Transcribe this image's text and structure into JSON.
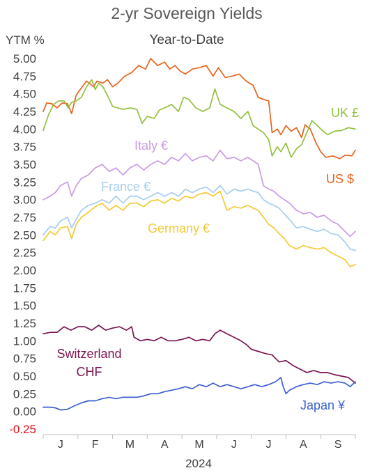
{
  "chart_data": {
    "type": "line",
    "title": "2-yr Sovereign Yields",
    "subtitle": "Year-to-Date",
    "ylabel": "YTM %",
    "xlabel": "2024",
    "ylim": [
      -0.25,
      5.0
    ],
    "yticks": [
      5.0,
      4.75,
      4.5,
      4.25,
      4.0,
      3.75,
      3.5,
      3.25,
      3.0,
      2.75,
      2.5,
      2.25,
      2.0,
      1.75,
      1.5,
      1.25,
      1.0,
      0.75,
      0.5,
      0.25,
      0.0,
      -0.25
    ],
    "ytick_labels": [
      "5.00",
      "4.75",
      "4.50",
      "4.25",
      "4.00",
      "3.75",
      "3.50",
      "3.25",
      "3.00",
      "2.75",
      "2.50",
      "2.25",
      "2.00",
      "1.75",
      "1.50",
      "1.25",
      "1.00",
      "0.75",
      "0.50",
      "0.25",
      "0.00",
      "-0.25"
    ],
    "months": [
      "J",
      "F",
      "M",
      "A",
      "M",
      "J",
      "J",
      "A",
      "S"
    ],
    "grid": false,
    "series": [
      {
        "name": "US $",
        "color": "#e8621c",
        "label_lines": [
          "US $"
        ],
        "x": [
          0,
          0.1,
          0.25,
          0.4,
          0.55,
          0.7,
          0.82,
          0.95,
          1.05,
          1.25,
          1.45,
          1.55,
          1.72,
          1.85,
          2.0,
          2.15,
          2.35,
          2.55,
          2.75,
          2.95,
          3.1,
          3.3,
          3.5,
          3.65,
          3.8,
          3.95,
          4.1,
          4.3,
          4.5,
          4.7,
          4.9,
          5.05,
          5.25,
          5.45,
          5.65,
          5.85,
          6.05,
          6.2,
          6.35,
          6.5,
          6.6,
          6.75,
          6.85,
          7.0,
          7.15,
          7.3,
          7.45,
          7.55,
          7.7,
          7.85,
          8.0,
          8.15,
          8.35,
          8.55,
          8.7,
          8.9,
          9.0
        ],
        "values": [
          4.25,
          4.37,
          4.36,
          4.3,
          4.37,
          4.36,
          4.22,
          4.48,
          4.55,
          4.68,
          4.6,
          4.68,
          4.65,
          4.7,
          4.6,
          4.65,
          4.75,
          4.8,
          4.9,
          4.85,
          5.0,
          4.9,
          4.95,
          4.85,
          4.9,
          4.82,
          4.78,
          4.85,
          4.87,
          4.9,
          4.75,
          4.87,
          4.73,
          4.75,
          4.78,
          4.68,
          4.62,
          4.45,
          4.42,
          4.4,
          3.95,
          4.0,
          3.92,
          4.05,
          3.97,
          4.02,
          3.88,
          4.06,
          4.0,
          3.82,
          3.68,
          3.6,
          3.62,
          3.58,
          3.63,
          3.62,
          3.7
        ]
      },
      {
        "name": "UK £",
        "color": "#92c13e",
        "label_lines": [
          "UK £"
        ],
        "x": [
          0,
          0.15,
          0.3,
          0.45,
          0.6,
          0.72,
          0.82,
          0.95,
          1.1,
          1.25,
          1.4,
          1.5,
          1.6,
          1.72,
          1.85,
          2.0,
          2.15,
          2.3,
          2.5,
          2.7,
          2.85,
          3.0,
          3.2,
          3.35,
          3.5,
          3.7,
          3.9,
          4.05,
          4.2,
          4.4,
          4.6,
          4.8,
          4.95,
          5.1,
          5.3,
          5.5,
          5.7,
          5.9,
          6.05,
          6.2,
          6.35,
          6.5,
          6.6,
          6.75,
          6.85,
          7.0,
          7.15,
          7.3,
          7.45,
          7.6,
          7.75,
          7.9,
          8.05,
          8.2,
          8.4,
          8.6,
          8.8,
          9.0
        ],
        "values": [
          3.98,
          4.2,
          4.35,
          4.4,
          4.4,
          4.3,
          4.38,
          4.4,
          4.45,
          4.6,
          4.7,
          4.56,
          4.65,
          4.6,
          4.48,
          4.32,
          4.3,
          4.28,
          4.3,
          4.28,
          4.08,
          4.18,
          4.15,
          4.27,
          4.3,
          4.35,
          4.25,
          4.45,
          4.42,
          4.3,
          4.25,
          4.3,
          4.57,
          4.35,
          4.3,
          4.25,
          4.15,
          4.25,
          4.05,
          4.0,
          3.95,
          3.85,
          3.62,
          3.75,
          3.68,
          3.8,
          3.6,
          3.72,
          3.78,
          3.95,
          4.12,
          4.05,
          3.98,
          3.92,
          3.97,
          3.98,
          4.02,
          4.0
        ]
      },
      {
        "name": "Italy €",
        "color": "#c99ae6",
        "label_lines": [
          "Italy €"
        ],
        "x": [
          0,
          0.2,
          0.35,
          0.5,
          0.7,
          0.82,
          0.95,
          1.1,
          1.3,
          1.5,
          1.7,
          1.9,
          2.1,
          2.3,
          2.5,
          2.7,
          2.9,
          3.1,
          3.3,
          3.5,
          3.7,
          3.9,
          4.1,
          4.3,
          4.5,
          4.7,
          4.9,
          5.1,
          5.3,
          5.5,
          5.7,
          5.9,
          6.05,
          6.2,
          6.35,
          6.5,
          6.65,
          6.8,
          6.95,
          7.1,
          7.3,
          7.5,
          7.7,
          7.9,
          8.1,
          8.3,
          8.5,
          8.7,
          8.85,
          9.0
        ],
        "values": [
          3.0,
          3.05,
          3.1,
          3.2,
          3.25,
          3.05,
          3.2,
          3.3,
          3.35,
          3.45,
          3.5,
          3.4,
          3.45,
          3.35,
          3.45,
          3.5,
          3.42,
          3.5,
          3.55,
          3.5,
          3.6,
          3.55,
          3.65,
          3.55,
          3.6,
          3.62,
          3.55,
          3.7,
          3.58,
          3.6,
          3.55,
          3.6,
          3.55,
          3.5,
          3.2,
          3.15,
          3.12,
          3.05,
          3.0,
          2.95,
          2.85,
          2.8,
          2.82,
          2.75,
          2.78,
          2.7,
          2.65,
          2.55,
          2.48,
          2.55
        ]
      },
      {
        "name": "France €",
        "color": "#a6cdee",
        "label_lines": [
          "France €"
        ],
        "x": [
          0,
          0.2,
          0.35,
          0.5,
          0.7,
          0.82,
          0.95,
          1.1,
          1.3,
          1.5,
          1.7,
          1.9,
          2.1,
          2.3,
          2.5,
          2.7,
          2.9,
          3.1,
          3.3,
          3.5,
          3.7,
          3.9,
          4.1,
          4.3,
          4.5,
          4.7,
          4.9,
          5.1,
          5.3,
          5.5,
          5.7,
          5.9,
          6.05,
          6.2,
          6.35,
          6.5,
          6.65,
          6.8,
          6.95,
          7.1,
          7.3,
          7.5,
          7.7,
          7.9,
          8.1,
          8.3,
          8.5,
          8.7,
          8.85,
          9.0
        ],
        "values": [
          2.5,
          2.62,
          2.6,
          2.7,
          2.75,
          2.6,
          2.72,
          2.85,
          2.92,
          2.95,
          3.0,
          2.95,
          3.05,
          2.95,
          3.05,
          3.05,
          3.0,
          3.05,
          3.1,
          3.05,
          3.1,
          3.05,
          3.15,
          3.1,
          3.15,
          3.18,
          3.1,
          3.2,
          3.08,
          3.15,
          3.12,
          3.15,
          3.12,
          3.1,
          3.0,
          2.95,
          2.92,
          2.88,
          2.8,
          2.72,
          2.6,
          2.62,
          2.58,
          2.55,
          2.58,
          2.52,
          2.5,
          2.4,
          2.3,
          2.28
        ]
      },
      {
        "name": "Germany €",
        "color": "#f5c933",
        "label_lines": [
          "Germany €"
        ],
        "x": [
          0,
          0.2,
          0.35,
          0.5,
          0.7,
          0.82,
          0.95,
          1.1,
          1.3,
          1.5,
          1.7,
          1.9,
          2.1,
          2.3,
          2.5,
          2.7,
          2.9,
          3.1,
          3.3,
          3.5,
          3.7,
          3.9,
          4.1,
          4.3,
          4.5,
          4.7,
          4.9,
          5.1,
          5.3,
          5.5,
          5.7,
          5.9,
          6.05,
          6.2,
          6.35,
          6.5,
          6.65,
          6.8,
          6.95,
          7.1,
          7.3,
          7.5,
          7.7,
          7.9,
          8.1,
          8.3,
          8.5,
          8.7,
          8.85,
          9.0
        ],
        "values": [
          2.42,
          2.55,
          2.5,
          2.6,
          2.62,
          2.45,
          2.65,
          2.75,
          2.82,
          2.9,
          2.95,
          2.85,
          2.92,
          2.85,
          2.95,
          2.95,
          2.9,
          2.98,
          3.0,
          2.95,
          3.02,
          2.98,
          3.05,
          3.02,
          3.08,
          3.1,
          3.05,
          3.12,
          2.85,
          2.9,
          2.88,
          2.92,
          2.88,
          2.85,
          2.75,
          2.65,
          2.6,
          2.52,
          2.45,
          2.35,
          2.3,
          2.35,
          2.32,
          2.3,
          2.32,
          2.25,
          2.2,
          2.15,
          2.05,
          2.08
        ]
      },
      {
        "name": "Switzerland CHF",
        "color": "#7b1450",
        "label_lines": [
          "Switzerland",
          "CHF"
        ],
        "x": [
          0,
          0.2,
          0.4,
          0.6,
          0.8,
          1.0,
          1.2,
          1.4,
          1.6,
          1.8,
          2.0,
          2.2,
          2.4,
          2.55,
          2.62,
          2.8,
          3.0,
          3.2,
          3.4,
          3.6,
          3.8,
          4.0,
          4.2,
          4.4,
          4.6,
          4.8,
          4.95,
          5.1,
          5.3,
          5.5,
          5.7,
          5.85,
          6.0,
          6.2,
          6.4,
          6.6,
          6.8,
          7.0,
          7.2,
          7.4,
          7.6,
          7.8,
          8.0,
          8.2,
          8.4,
          8.6,
          8.8,
          9.0
        ],
        "values": [
          1.1,
          1.12,
          1.12,
          1.2,
          1.15,
          1.2,
          1.2,
          1.15,
          1.22,
          1.15,
          1.18,
          1.2,
          1.15,
          1.2,
          1.05,
          1.0,
          1.02,
          1.0,
          1.05,
          1.0,
          1.0,
          1.02,
          1.05,
          1.0,
          1.02,
          1.0,
          1.1,
          1.15,
          1.1,
          1.05,
          1.0,
          0.95,
          0.88,
          0.85,
          0.82,
          0.8,
          0.7,
          0.72,
          0.65,
          0.6,
          0.55,
          0.58,
          0.55,
          0.55,
          0.52,
          0.5,
          0.48,
          0.4
        ]
      },
      {
        "name": "Japan ¥",
        "color": "#3b5fd1",
        "label_lines": [
          "Japan ¥"
        ],
        "x": [
          0,
          0.2,
          0.35,
          0.5,
          0.7,
          0.9,
          1.1,
          1.3,
          1.5,
          1.7,
          1.9,
          2.1,
          2.3,
          2.5,
          2.7,
          2.9,
          3.1,
          3.3,
          3.5,
          3.7,
          3.9,
          4.1,
          4.3,
          4.5,
          4.7,
          4.9,
          5.1,
          5.3,
          5.5,
          5.7,
          5.9,
          6.1,
          6.3,
          6.5,
          6.7,
          6.85,
          6.92,
          7.0,
          7.1,
          7.3,
          7.5,
          7.7,
          7.9,
          8.1,
          8.3,
          8.5,
          8.7,
          8.85,
          9.0
        ],
        "values": [
          0.06,
          0.06,
          0.05,
          0.02,
          0.03,
          0.08,
          0.12,
          0.15,
          0.15,
          0.18,
          0.2,
          0.18,
          0.2,
          0.2,
          0.2,
          0.22,
          0.25,
          0.25,
          0.28,
          0.3,
          0.32,
          0.35,
          0.32,
          0.38,
          0.35,
          0.4,
          0.35,
          0.38,
          0.35,
          0.32,
          0.35,
          0.38,
          0.35,
          0.38,
          0.42,
          0.48,
          0.35,
          0.25,
          0.3,
          0.35,
          0.38,
          0.4,
          0.38,
          0.42,
          0.4,
          0.42,
          0.4,
          0.35,
          0.42
        ]
      }
    ]
  }
}
